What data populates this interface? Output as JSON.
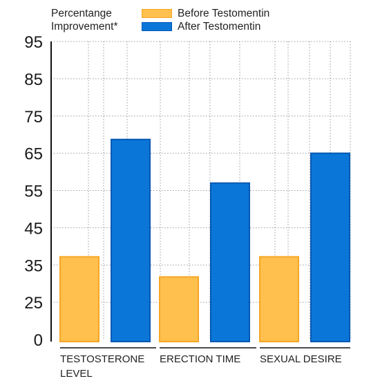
{
  "chart_data": {
    "type": "bar",
    "title": "Percentange\nImprovement*",
    "categories": [
      "TESTOSTERONE LEVEL",
      "ERECTION TIME",
      "SEXUAL DESIRE"
    ],
    "series": [
      {
        "name": "Before Testomentin",
        "values": [
          37.2,
          31.8,
          37.2
        ],
        "color": "#FFC04D",
        "border": "#F5A623"
      },
      {
        "name": "After Testomentin",
        "values": [
          68.7,
          57.0,
          65.0
        ],
        "color": "#0A77D8",
        "border": "#0057B3"
      }
    ],
    "yticks": [
      0,
      25,
      35,
      45,
      55,
      65,
      75,
      85,
      95
    ],
    "ylim": [
      0,
      95
    ],
    "grid": true,
    "legend_position": "top"
  }
}
